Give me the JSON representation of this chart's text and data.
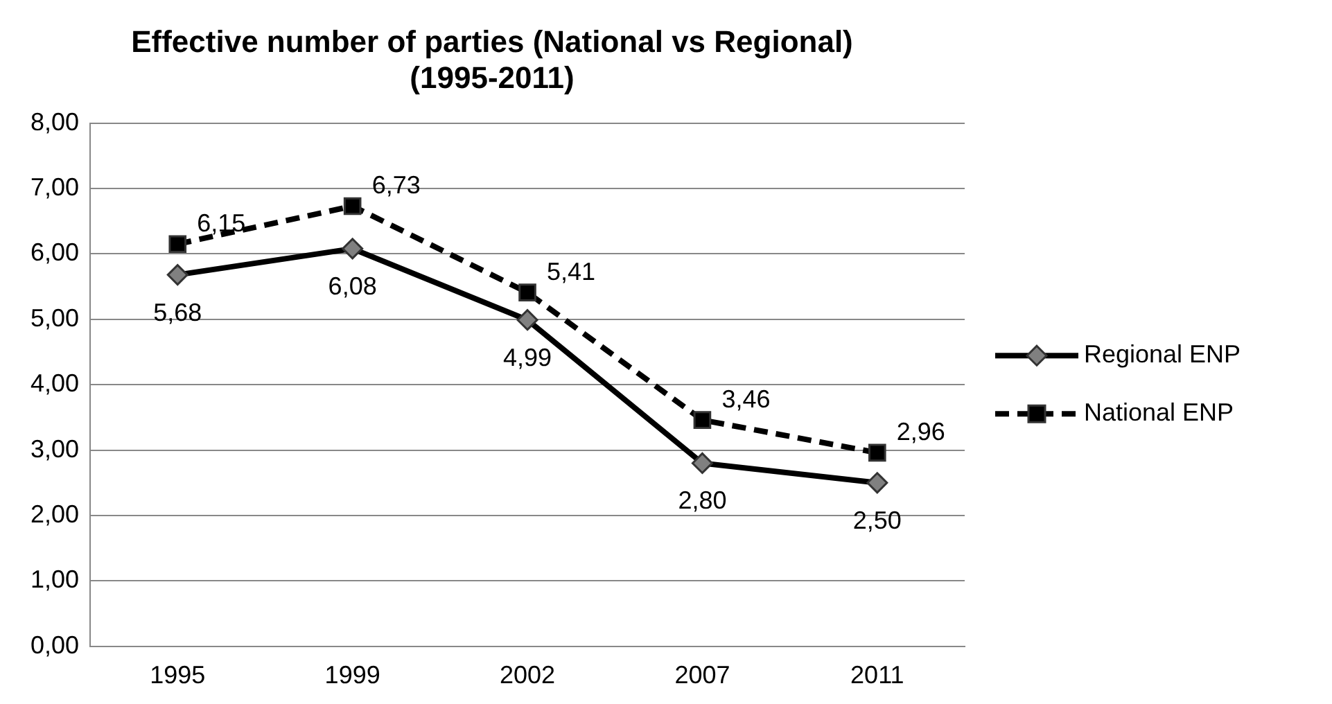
{
  "chart_data": {
    "type": "line",
    "title": "Effective number of parties (National vs Regional)\n(1995-2011)",
    "categories": [
      "1995",
      "1999",
      "2002",
      "2007",
      "2011"
    ],
    "series": [
      {
        "name": "Regional ENP",
        "color": "#000000",
        "values": [
          5.68,
          6.08,
          4.99,
          2.8,
          2.5
        ],
        "marker": "diamond",
        "line_style": "solid",
        "value_labels": [
          "5,68",
          "6,08",
          "4,99",
          "2,80",
          "2,50"
        ]
      },
      {
        "name": "National ENP",
        "color": "#000000",
        "values": [
          6.15,
          6.73,
          5.41,
          3.46,
          2.96
        ],
        "marker": "square",
        "line_style": "dashed",
        "value_labels": [
          "6,15",
          "6,73",
          "5,41",
          "3,46",
          "2,96"
        ]
      }
    ],
    "ylim": [
      0,
      8
    ],
    "yticks": [
      {
        "value": 0,
        "label": "0,00"
      },
      {
        "value": 1,
        "label": "1,00"
      },
      {
        "value": 2,
        "label": "2,00"
      },
      {
        "value": 3,
        "label": "3,00"
      },
      {
        "value": 4,
        "label": "4,00"
      },
      {
        "value": 5,
        "label": "5,00"
      },
      {
        "value": 6,
        "label": "6,00"
      },
      {
        "value": 7,
        "label": "7,00"
      },
      {
        "value": 8,
        "label": "8,00"
      }
    ],
    "grid": "y",
    "legend": "right"
  }
}
